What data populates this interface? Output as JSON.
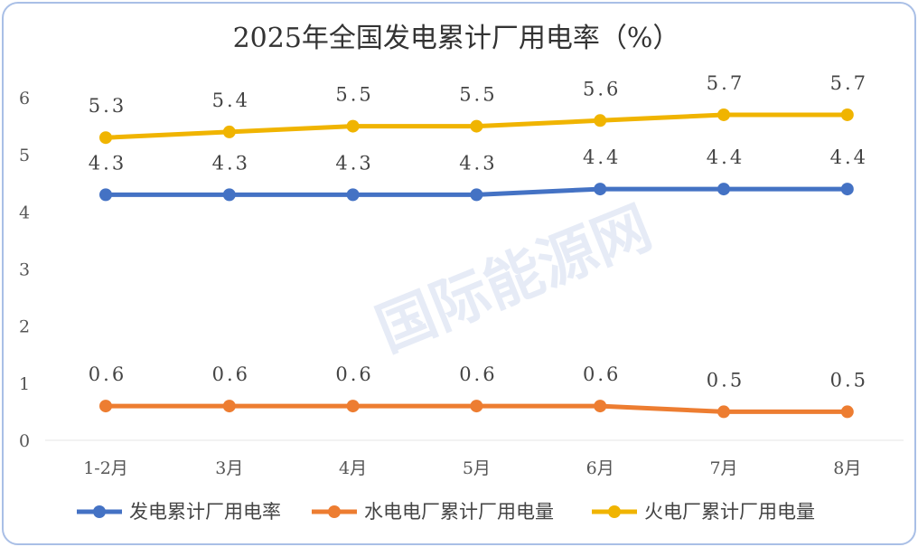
{
  "chart_data": {
    "type": "line",
    "title": "2025年全国发电累计厂用电率（%）",
    "categories": [
      "1-2月",
      "3月",
      "4月",
      "5月",
      "6月",
      "7月",
      "8月"
    ],
    "ylim": [
      0,
      6
    ],
    "yticks": [
      "0",
      "1",
      "2",
      "3",
      "4",
      "5",
      "6"
    ],
    "grid": false,
    "legend_position": "bottom",
    "series": [
      {
        "name": "发电累计厂用电率",
        "color": "#4472c4",
        "values": [
          4.3,
          4.3,
          4.3,
          4.3,
          4.4,
          4.4,
          4.4
        ]
      },
      {
        "name": "水电电厂累计厂用电量",
        "color": "#ed7d31",
        "values": [
          0.6,
          0.6,
          0.6,
          0.6,
          0.6,
          0.5,
          0.5
        ]
      },
      {
        "name": "火电厂累计厂用电量",
        "color": "#f0b400",
        "values": [
          5.3,
          5.4,
          5.5,
          5.5,
          5.6,
          5.7,
          5.7
        ]
      }
    ],
    "watermark": "国际能源网"
  }
}
